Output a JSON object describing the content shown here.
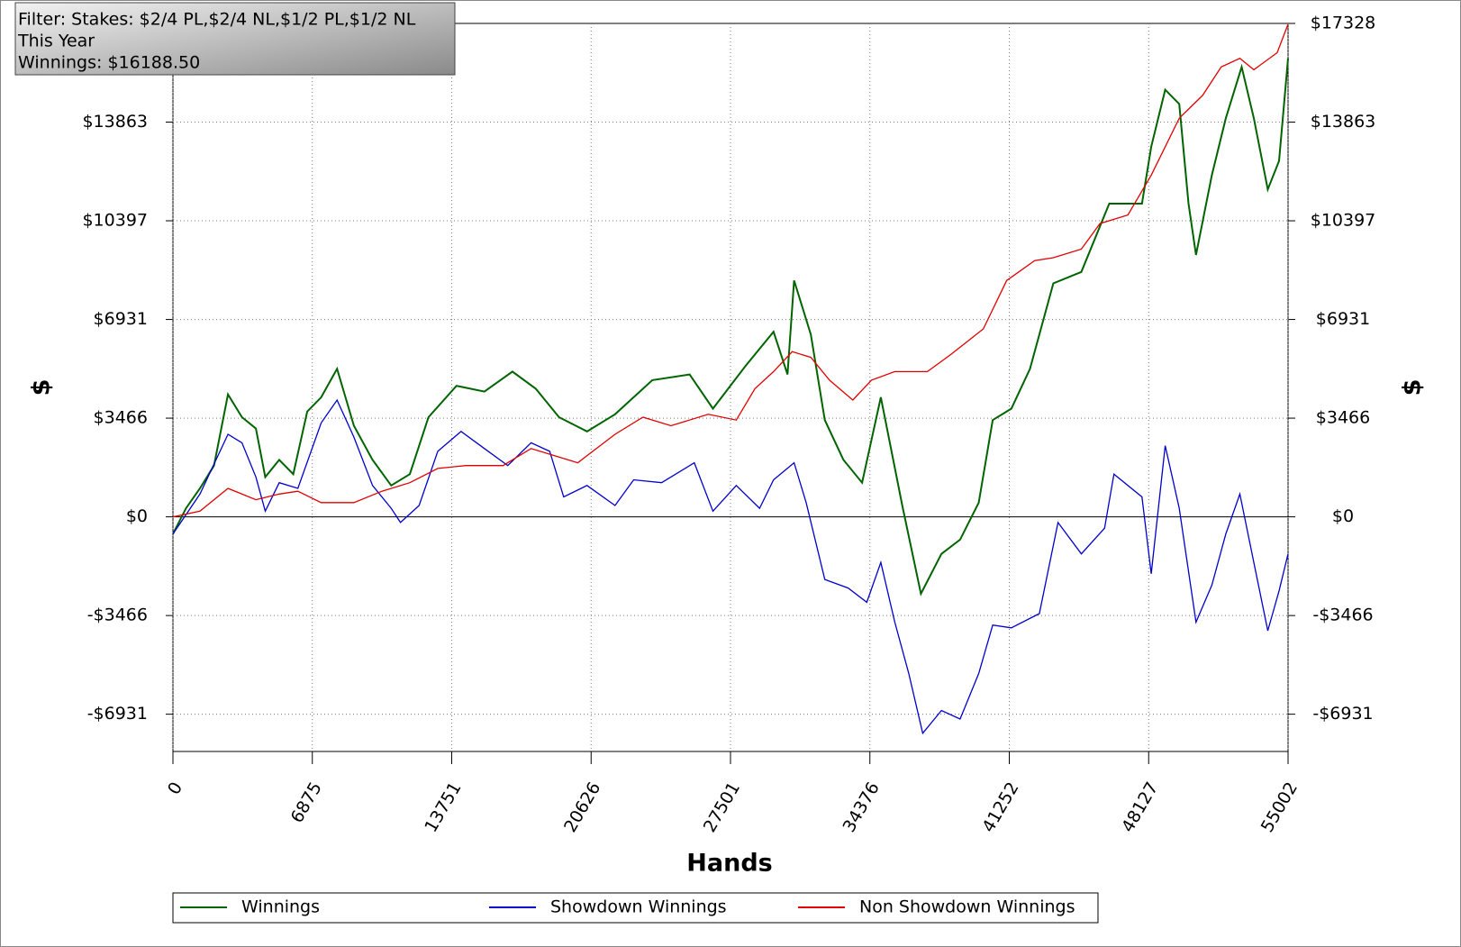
{
  "filter_box": {
    "lines": [
      "Filter: Stakes: $2/4 PL,$2/4 NL,$1/2 PL,$1/2 NL",
      "This Year",
      "Winnings: $16188.50"
    ]
  },
  "chart_data": {
    "type": "line",
    "x_label": "Hands",
    "y_label": "$",
    "y2_label": "$",
    "xlim": [
      0,
      55002
    ],
    "xticks": [
      0,
      6875,
      13751,
      20626,
      27501,
      34376,
      41252,
      48127,
      55002
    ],
    "ylim": [
      -8240,
      17328
    ],
    "yticks": [
      {
        "value": -6931,
        "label": "-$6931"
      },
      {
        "value": -3466,
        "label": "-$3466"
      },
      {
        "value": 0,
        "label": "$0"
      },
      {
        "value": 3466,
        "label": "$3466"
      },
      {
        "value": 6931,
        "label": "$6931"
      },
      {
        "value": 10397,
        "label": "$10397"
      },
      {
        "value": 13863,
        "label": "$13863"
      }
    ],
    "y2ticks": [
      {
        "value": -6931,
        "label": "-$6931"
      },
      {
        "value": -3466,
        "label": "-$3466"
      },
      {
        "value": 0,
        "label": "$0"
      },
      {
        "value": 3466,
        "label": "$3466"
      },
      {
        "value": 6931,
        "label": "$6931"
      },
      {
        "value": 10397,
        "label": "$10397"
      },
      {
        "value": 13863,
        "label": "$13863"
      },
      {
        "value": 17328,
        "label": "$17328"
      }
    ],
    "grid": true,
    "series": [
      {
        "name": "Winnings",
        "color": "#006400",
        "x": [
          0,
          644,
          1334,
          2024,
          2714,
          3404,
          4094,
          4554,
          5244,
          5934,
          6624,
          7314,
          8096,
          8924,
          9844,
          10764,
          11684,
          12604,
          13984,
          15364,
          16744,
          17894,
          19044,
          20424,
          21804,
          23644,
          25484,
          26634,
          28244,
          29624,
          30314,
          30636,
          31464,
          32154,
          33074,
          33994,
          34914,
          35972,
          36892,
          37904,
          38824,
          39744,
          40434,
          41354,
          42274,
          43424,
          44804,
          46184,
          47794,
          48254,
          48944,
          49634,
          50094,
          50462,
          51244,
          51934,
          52716,
          53314,
          54004,
          54556,
          55002
        ],
        "values": [
          -600,
          300,
          1000,
          1800,
          4300,
          3500,
          3100,
          1400,
          2000,
          1500,
          3700,
          4200,
          5200,
          3200,
          2000,
          1100,
          1500,
          3500,
          4600,
          4400,
          5100,
          4500,
          3500,
          3000,
          3600,
          4800,
          5000,
          3800,
          5300,
          6500,
          5000,
          8300,
          6400,
          3400,
          2000,
          1200,
          4200,
          400,
          -2700,
          -1300,
          -800,
          500,
          3400,
          3800,
          5200,
          8200,
          8600,
          11000,
          11000,
          13000,
          15000,
          14500,
          11000,
          9200,
          12000,
          14000,
          15800,
          14000,
          11500,
          12500,
          16100
        ]
      },
      {
        "name": "Showdown Winnings",
        "color": "#0000cc",
        "x": [
          0,
          1334,
          2714,
          3404,
          4094,
          4554,
          5244,
          6164,
          7314,
          8096,
          8924,
          9844,
          10764,
          11224,
          12144,
          13064,
          14214,
          15364,
          16514,
          17664,
          18584,
          19274,
          20424,
          21804,
          22724,
          24104,
          25714,
          26634,
          27784,
          28934,
          29624,
          30636,
          31234,
          32154,
          33304,
          34224,
          34914,
          35604,
          36294,
          36984,
          37904,
          38824,
          39744,
          40434,
          41354,
          42734,
          43654,
          44804,
          45954,
          46414,
          47794,
          48254,
          48944,
          49634,
          50462,
          51244,
          51934,
          52624,
          53314,
          54004,
          54556,
          55002
        ],
        "values": [
          -600,
          800,
          2900,
          2600,
          1400,
          200,
          1200,
          1000,
          3300,
          4100,
          2800,
          1100,
          300,
          -200,
          400,
          2300,
          3000,
          2400,
          1800,
          2600,
          2300,
          700,
          1100,
          400,
          1300,
          1200,
          1900,
          200,
          1100,
          300,
          1300,
          1900,
          500,
          -2200,
          -2500,
          -3000,
          -1600,
          -3700,
          -5500,
          -7600,
          -6800,
          -7100,
          -5500,
          -3800,
          -3900,
          -3400,
          -200,
          -1300,
          -400,
          1500,
          700,
          -2000,
          2500,
          300,
          -3700,
          -2400,
          -600,
          800,
          -1600,
          -4000,
          -2600,
          -1300
        ]
      },
      {
        "name": "Non Showdown Winnings",
        "color": "#e00000",
        "x": [
          0,
          1334,
          2714,
          4094,
          5244,
          6164,
          7314,
          8924,
          10304,
          11684,
          13064,
          14444,
          16284,
          17664,
          19044,
          19964,
          21804,
          23184,
          24564,
          26404,
          27784,
          28704,
          29624,
          30544,
          31464,
          32384,
          33534,
          34454,
          35604,
          37214,
          38364,
          39974,
          41124,
          42504,
          43424,
          44804,
          45724,
          47104,
          48254,
          49634,
          50784,
          51704,
          52624,
          53314,
          54464,
          55002
        ],
        "values": [
          0,
          200,
          1000,
          600,
          800,
          900,
          500,
          500,
          900,
          1200,
          1700,
          1800,
          1800,
          2400,
          2100,
          1900,
          2900,
          3500,
          3200,
          3600,
          3400,
          4500,
          5100,
          5800,
          5600,
          4800,
          4100,
          4800,
          5100,
          5100,
          5700,
          6600,
          8300,
          9000,
          9100,
          9400,
          10300,
          10600,
          12000,
          14000,
          14800,
          15800,
          16100,
          15700,
          16300,
          17300
        ]
      }
    ]
  }
}
